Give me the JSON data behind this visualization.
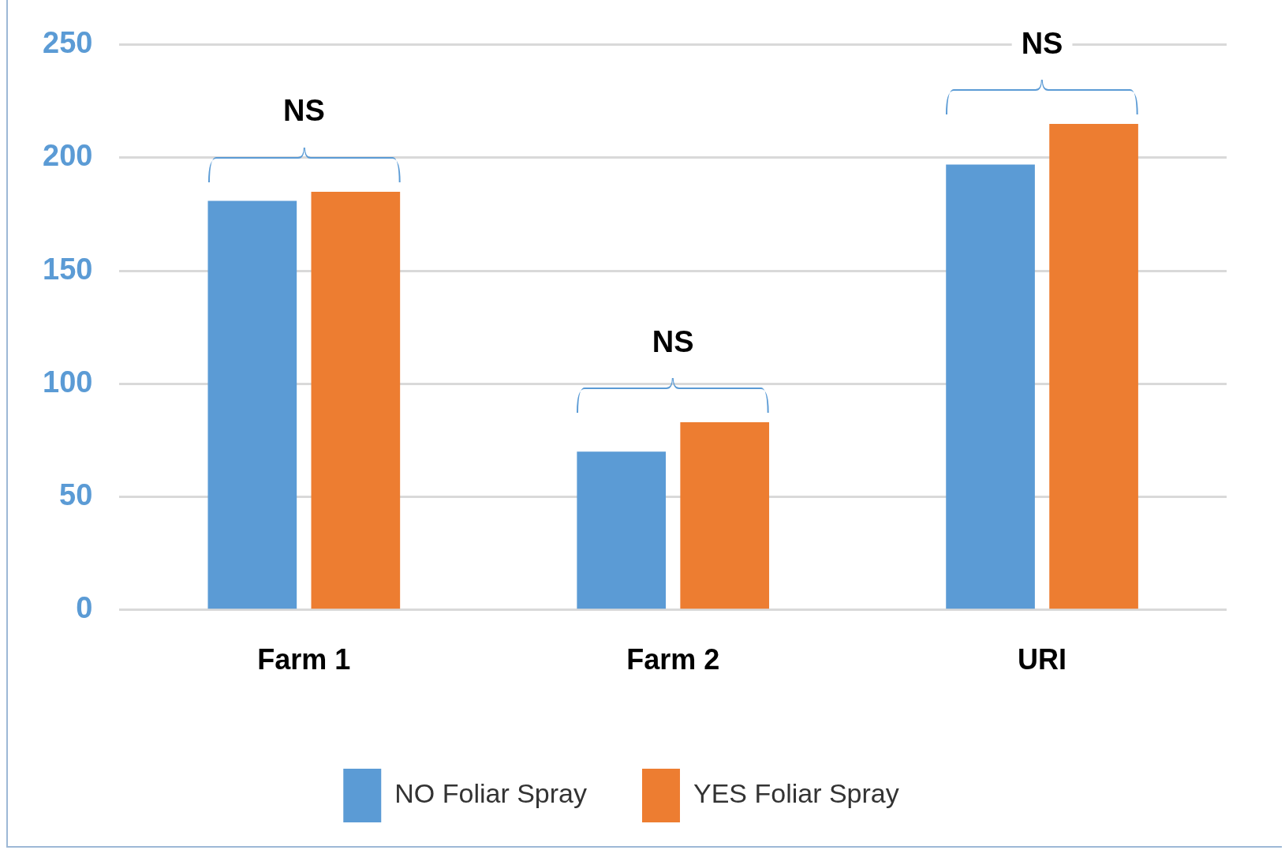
{
  "chart_data": {
    "type": "bar",
    "categories": [
      "Farm 1",
      "Farm 2",
      "URI"
    ],
    "series": [
      {
        "name": "NO Foliar Spray",
        "color": "#5b9bd5",
        "values": [
          181,
          70,
          197
        ]
      },
      {
        "name": "YES Foliar Spray",
        "color": "#ed7d31",
        "values": [
          185,
          83,
          215
        ]
      }
    ],
    "ylim": [
      0,
      250
    ],
    "yticks": [
      0,
      50,
      100,
      150,
      200,
      250
    ],
    "grid": "y",
    "legend": "bottom",
    "annotations": [
      "NS",
      "NS",
      "NS"
    ]
  }
}
